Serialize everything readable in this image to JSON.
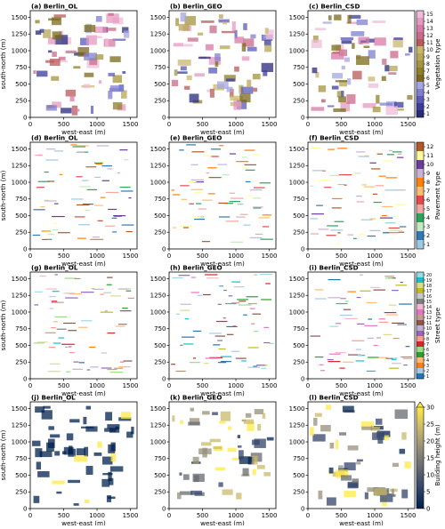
{
  "figure": {
    "x_axis_label": "west-east (m)",
    "y_axis_label": "south-north (m)"
  },
  "chart_data": [
    {
      "type": "heatmap",
      "panel": "a",
      "title": "(a) Berlin_OL",
      "row": 0,
      "col": 0,
      "xlim": [
        0,
        1600
      ],
      "ylim": [
        0,
        1600
      ],
      "x_ticks": [
        "0",
        "500",
        "1000",
        "1500"
      ],
      "y_ticks": [
        "0",
        "250",
        "500",
        "750",
        "1000",
        "1250",
        "1500"
      ]
    },
    {
      "type": "heatmap",
      "panel": "b",
      "title": "(b) Berlin_GEO",
      "row": 0,
      "col": 1,
      "xlim": [
        0,
        1600
      ],
      "ylim": [
        0,
        1600
      ],
      "x_ticks": [
        "0",
        "500",
        "1000",
        "1500"
      ],
      "y_ticks": [
        "0",
        "250",
        "500",
        "750",
        "1000",
        "1250",
        "1500"
      ]
    },
    {
      "type": "heatmap",
      "panel": "c",
      "title": "(c) Berlin_CSD",
      "row": 0,
      "col": 2,
      "xlim": [
        0,
        1600
      ],
      "ylim": [
        0,
        1600
      ],
      "x_ticks": [
        "0",
        "500",
        "1000",
        "1500"
      ],
      "y_ticks": [
        "0",
        "250",
        "500",
        "750",
        "1000",
        "1250",
        "1500"
      ]
    },
    {
      "type": "heatmap",
      "panel": "d",
      "title": "(d) Berlin_OL",
      "row": 1,
      "col": 0,
      "xlim": [
        0,
        1600
      ],
      "ylim": [
        0,
        1600
      ],
      "x_ticks": [
        "0",
        "500",
        "1000",
        "1500"
      ],
      "y_ticks": [
        "0",
        "250",
        "500",
        "750",
        "1000",
        "1250",
        "1500"
      ]
    },
    {
      "type": "heatmap",
      "panel": "e",
      "title": "(e) Berlin_GEO",
      "row": 1,
      "col": 1,
      "xlim": [
        0,
        1600
      ],
      "ylim": [
        0,
        1600
      ],
      "x_ticks": [
        "0",
        "500",
        "1000",
        "1500"
      ],
      "y_ticks": [
        "0",
        "250",
        "500",
        "750",
        "1000",
        "1250",
        "1500"
      ]
    },
    {
      "type": "heatmap",
      "panel": "f",
      "title": "(f) Berlin_CSD",
      "row": 1,
      "col": 2,
      "xlim": [
        0,
        1600
      ],
      "ylim": [
        0,
        1600
      ],
      "x_ticks": [
        "0",
        "500",
        "1000",
        "1500"
      ],
      "y_ticks": [
        "0",
        "250",
        "500",
        "750",
        "1000",
        "1250",
        "1500"
      ]
    },
    {
      "type": "heatmap",
      "panel": "g",
      "title": "(g) Berlin_OL",
      "row": 2,
      "col": 0,
      "xlim": [
        0,
        1600
      ],
      "ylim": [
        0,
        1600
      ],
      "x_ticks": [
        "0",
        "500",
        "1000",
        "1500"
      ],
      "y_ticks": [
        "0",
        "250",
        "500",
        "750",
        "1000",
        "1250",
        "1500"
      ]
    },
    {
      "type": "heatmap",
      "panel": "h",
      "title": "(h) Berlin_GEO",
      "row": 2,
      "col": 1,
      "xlim": [
        0,
        1600
      ],
      "ylim": [
        0,
        1600
      ],
      "x_ticks": [
        "0",
        "500",
        "1000",
        "1500"
      ],
      "y_ticks": [
        "0",
        "250",
        "500",
        "750",
        "1000",
        "1250",
        "1500"
      ]
    },
    {
      "type": "heatmap",
      "panel": "i",
      "title": "(i) Berlin_CSD",
      "row": 2,
      "col": 2,
      "xlim": [
        0,
        1600
      ],
      "ylim": [
        0,
        1600
      ],
      "x_ticks": [
        "0",
        "500",
        "1000",
        "1500"
      ],
      "y_ticks": [
        "0",
        "250",
        "500",
        "750",
        "1000",
        "1250",
        "1500"
      ]
    },
    {
      "type": "heatmap",
      "panel": "j",
      "title": "(j) Berlin_OL",
      "row": 3,
      "col": 0,
      "xlim": [
        0,
        1600
      ],
      "ylim": [
        0,
        1600
      ],
      "x_ticks": [
        "0",
        "500",
        "1000",
        "1500"
      ],
      "y_ticks": [
        "0",
        "250",
        "500",
        "750",
        "1000",
        "1250",
        "1500"
      ]
    },
    {
      "type": "heatmap",
      "panel": "k",
      "title": "(k) Berlin_GEO",
      "row": 3,
      "col": 1,
      "xlim": [
        0,
        1600
      ],
      "ylim": [
        0,
        1600
      ],
      "x_ticks": [
        "0",
        "500",
        "1000",
        "1500"
      ],
      "y_ticks": [
        "0",
        "250",
        "500",
        "750",
        "1000",
        "1250",
        "1500"
      ]
    },
    {
      "type": "heatmap",
      "panel": "l",
      "title": "(l) Berlin_CSD",
      "row": 3,
      "col": 2,
      "xlim": [
        0,
        1600
      ],
      "ylim": [
        0,
        1600
      ],
      "x_ticks": [
        "0",
        "500",
        "1000",
        "1500"
      ],
      "y_ticks": [
        "0",
        "250",
        "500",
        "750",
        "1000",
        "1250",
        "1500"
      ]
    }
  ],
  "colorbars": [
    {
      "row": 0,
      "label": "Vegetation type",
      "type": "discrete",
      "ticks": [
        "1",
        "2",
        "3",
        "4",
        "5",
        "6",
        "7",
        "8",
        "9",
        "10",
        "11",
        "12",
        "13",
        "14",
        "15"
      ],
      "colors": [
        "#2a2a7c",
        "#3b3b9a",
        "#5a5ab8",
        "#7f7fd0",
        "#a6a6e2",
        "#7a6a1a",
        "#8f7f2a",
        "#a4943e",
        "#b7a655",
        "#c9b76e",
        "#b85a5a",
        "#c96a8a",
        "#d87aa6",
        "#e49ac0",
        "#f0bcd9"
      ]
    },
    {
      "row": 1,
      "label": "Pavement type",
      "type": "discrete",
      "ticks": [
        "1",
        "2",
        "3",
        "4",
        "5",
        "6",
        "7",
        "8",
        "9",
        "10",
        "11",
        "12"
      ],
      "colors": [
        "#9ecae1",
        "#2f78b4",
        "#c7e9c0",
        "#2ca25f",
        "#f4a6a6",
        "#e34a4a",
        "#fdbf6f",
        "#ff7f0e",
        "#cab2d6",
        "#6a3d9a",
        "#ffff99",
        "#b15928"
      ]
    },
    {
      "row": 2,
      "label": "Street type",
      "type": "discrete",
      "ticks": [
        "1",
        "2",
        "3",
        "4",
        "5",
        "6",
        "7",
        "8",
        "9",
        "10",
        "11",
        "12",
        "13",
        "14",
        "15",
        "16",
        "17",
        "18",
        "19",
        "20"
      ],
      "colors": [
        "#1f77b4",
        "#aec7e8",
        "#ff7f0e",
        "#ffbb78",
        "#2ca02c",
        "#98df8a",
        "#d62728",
        "#ff9896",
        "#9467bd",
        "#c5b0d5",
        "#8c564b",
        "#c49c94",
        "#e377c2",
        "#f7b6d2",
        "#7f7f7f",
        "#c7c7c7",
        "#bcbd22",
        "#dbdb8d",
        "#17becf",
        "#9edae5"
      ]
    },
    {
      "row": 3,
      "label": "Building height (m)",
      "type": "continuous",
      "ticks": [
        "0",
        "5",
        "10",
        "15",
        "20",
        "25",
        "30"
      ],
      "colors": [
        "#00204c",
        "#31446b",
        "#666970",
        "#958f78",
        "#cbba69",
        "#ffea46"
      ]
    }
  ]
}
